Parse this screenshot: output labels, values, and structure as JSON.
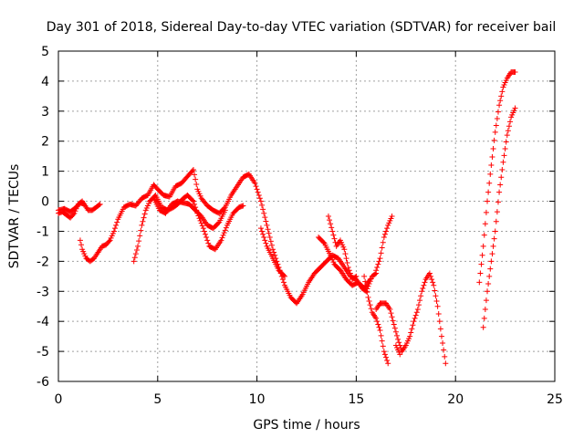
{
  "chart_data": {
    "type": "scatter",
    "title": "Day 301 of 2018, Sidereal Day-to-day VTEC variation (SDTVAR) for receiver bail",
    "xlabel": "GPS time / hours",
    "ylabel": "SDTVAR / TECUs",
    "xlim": [
      0,
      25
    ],
    "ylim": [
      -6,
      5
    ],
    "xticks": [
      "0",
      "5",
      "10",
      "15",
      "20",
      "25"
    ],
    "yticks": [
      "-6",
      "-5",
      "-4",
      "-3",
      "-2",
      "-1",
      "0",
      "1",
      "2",
      "3",
      "4",
      "5"
    ],
    "grid": true,
    "marker": "+",
    "color": "#ff0000",
    "series": [
      {
        "name": "s1",
        "points": [
          [
            0,
            -0.4
          ],
          [
            0.2,
            -0.35
          ],
          [
            0.4,
            -0.45
          ],
          [
            0.6,
            -0.55
          ],
          [
            0.8,
            -0.4
          ],
          [
            1.0,
            -0.1
          ],
          [
            1.2,
            0.0
          ],
          [
            1.35,
            -0.15
          ],
          [
            1.5,
            -0.3
          ],
          [
            1.7,
            -0.3
          ],
          [
            1.9,
            -0.2
          ],
          [
            2.1,
            -0.1
          ]
        ]
      },
      {
        "name": "s2",
        "points": [
          [
            0,
            -0.3
          ],
          [
            0.3,
            -0.25
          ],
          [
            0.6,
            -0.35
          ],
          [
            0.9,
            -0.2
          ],
          [
            1.1,
            -0.05
          ],
          [
            1.3,
            -0.1
          ]
        ]
      },
      {
        "name": "s3",
        "points": [
          [
            1.1,
            -1.3
          ],
          [
            1.2,
            -1.6
          ],
          [
            1.4,
            -1.9
          ],
          [
            1.6,
            -2.0
          ],
          [
            1.8,
            -1.9
          ],
          [
            2.0,
            -1.7
          ],
          [
            2.2,
            -1.5
          ],
          [
            2.4,
            -1.45
          ],
          [
            2.6,
            -1.3
          ],
          [
            2.8,
            -1.0
          ],
          [
            3.0,
            -0.6
          ],
          [
            3.3,
            -0.2
          ],
          [
            3.6,
            -0.1
          ],
          [
            3.9,
            -0.15
          ],
          [
            4.2,
            0.1
          ],
          [
            4.5,
            0.2
          ],
          [
            4.8,
            0.55
          ],
          [
            5.0,
            0.4
          ],
          [
            5.3,
            0.2
          ],
          [
            5.6,
            0.15
          ],
          [
            5.9,
            0.5
          ],
          [
            6.2,
            0.6
          ],
          [
            6.6,
            0.9
          ],
          [
            6.8,
            1.05
          ],
          [
            7.0,
            0.4
          ],
          [
            7.2,
            0.1
          ],
          [
            7.5,
            -0.15
          ],
          [
            7.8,
            -0.3
          ],
          [
            8.1,
            -0.4
          ],
          [
            8.4,
            -0.2
          ],
          [
            8.7,
            0.2
          ],
          [
            9.0,
            0.5
          ],
          [
            9.3,
            0.8
          ],
          [
            9.6,
            0.9
          ],
          [
            9.9,
            0.6
          ],
          [
            10.2,
            0.0
          ],
          [
            10.5,
            -0.8
          ],
          [
            10.8,
            -1.6
          ],
          [
            11.1,
            -2.2
          ],
          [
            11.4,
            -2.8
          ],
          [
            11.7,
            -3.2
          ],
          [
            12.0,
            -3.4
          ],
          [
            12.3,
            -3.1
          ],
          [
            12.6,
            -2.7
          ],
          [
            12.9,
            -2.4
          ],
          [
            13.2,
            -2.2
          ],
          [
            13.5,
            -2.0
          ],
          [
            13.8,
            -1.8
          ],
          [
            14.1,
            -1.9
          ],
          [
            14.4,
            -2.2
          ],
          [
            14.7,
            -2.5
          ],
          [
            15.0,
            -2.6
          ],
          [
            15.3,
            -2.9
          ],
          [
            15.5,
            -3.0
          ],
          [
            15.8,
            -2.5
          ],
          [
            16.0,
            -2.4
          ]
        ]
      },
      {
        "name": "s4",
        "points": [
          [
            3.8,
            -2.0
          ],
          [
            4.0,
            -1.5
          ],
          [
            4.2,
            -0.8
          ],
          [
            4.4,
            -0.3
          ],
          [
            4.6,
            0.0
          ],
          [
            4.9,
            0.2
          ],
          [
            5.2,
            -0.2
          ],
          [
            5.5,
            -0.3
          ],
          [
            5.8,
            -0.2
          ],
          [
            6.0,
            -0.1
          ],
          [
            6.3,
            0.1
          ],
          [
            6.5,
            0.2
          ],
          [
            6.8,
            0.0
          ],
          [
            7.0,
            -0.4
          ],
          [
            7.3,
            -0.9
          ],
          [
            7.6,
            -1.5
          ],
          [
            7.9,
            -1.6
          ],
          [
            8.2,
            -1.3
          ],
          [
            8.5,
            -0.8
          ],
          [
            8.8,
            -0.4
          ],
          [
            9.1,
            -0.2
          ],
          [
            9.3,
            -0.15
          ]
        ]
      },
      {
        "name": "s5",
        "points": [
          [
            4.8,
            0.1
          ],
          [
            5.1,
            -0.3
          ],
          [
            5.4,
            -0.4
          ],
          [
            5.7,
            -0.1
          ],
          [
            6.0,
            0.0
          ],
          [
            6.3,
            -0.05
          ],
          [
            6.6,
            -0.1
          ],
          [
            6.9,
            -0.3
          ],
          [
            7.2,
            -0.5
          ],
          [
            7.5,
            -0.8
          ],
          [
            7.8,
            -0.9
          ],
          [
            8.1,
            -0.7
          ],
          [
            8.4,
            -0.3
          ]
        ]
      },
      {
        "name": "s6",
        "points": [
          [
            10.2,
            -0.9
          ],
          [
            10.5,
            -1.5
          ],
          [
            10.8,
            -1.9
          ],
          [
            11.1,
            -2.3
          ],
          [
            11.4,
            -2.5
          ]
        ]
      },
      {
        "name": "s7",
        "points": [
          [
            13.1,
            -1.2
          ],
          [
            13.4,
            -1.4
          ],
          [
            13.7,
            -1.8
          ],
          [
            13.9,
            -2.1
          ],
          [
            14.2,
            -2.3
          ],
          [
            14.5,
            -2.6
          ],
          [
            14.8,
            -2.8
          ],
          [
            15.1,
            -2.7
          ],
          [
            15.4,
            -2.9
          ],
          [
            15.7,
            -2.6
          ]
        ]
      },
      {
        "name": "s8",
        "points": [
          [
            13.6,
            -0.5
          ],
          [
            13.8,
            -1.0
          ],
          [
            14.0,
            -1.5
          ],
          [
            14.2,
            -1.3
          ],
          [
            14.4,
            -1.6
          ],
          [
            14.6,
            -2.2
          ],
          [
            14.8,
            -2.6
          ],
          [
            15.0,
            -2.5
          ]
        ]
      },
      {
        "name": "s9",
        "points": [
          [
            15.4,
            -2.5
          ],
          [
            15.6,
            -3.2
          ],
          [
            15.8,
            -3.7
          ],
          [
            16.0,
            -3.9
          ],
          [
            16.2,
            -4.3
          ],
          [
            16.4,
            -5.0
          ],
          [
            16.6,
            -5.4
          ]
        ]
      },
      {
        "name": "s10",
        "points": [
          [
            16.0,
            -2.3
          ],
          [
            16.2,
            -1.9
          ],
          [
            16.4,
            -1.2
          ],
          [
            16.6,
            -0.8
          ],
          [
            16.8,
            -0.5
          ]
        ]
      },
      {
        "name": "s11",
        "points": [
          [
            16.0,
            -3.6
          ],
          [
            16.2,
            -3.4
          ],
          [
            16.5,
            -3.4
          ],
          [
            16.7,
            -3.6
          ],
          [
            16.9,
            -4.1
          ],
          [
            17.1,
            -4.6
          ],
          [
            17.3,
            -5.0
          ],
          [
            17.5,
            -4.8
          ],
          [
            17.7,
            -4.5
          ],
          [
            17.9,
            -4.0
          ],
          [
            18.1,
            -3.6
          ],
          [
            18.3,
            -3.0
          ],
          [
            18.5,
            -2.6
          ],
          [
            18.7,
            -2.4
          ],
          [
            18.9,
            -2.8
          ],
          [
            19.1,
            -3.5
          ],
          [
            19.3,
            -4.5
          ],
          [
            19.5,
            -5.4
          ]
        ]
      },
      {
        "name": "s12",
        "points": [
          [
            17.0,
            -4.8
          ],
          [
            17.2,
            -5.1
          ]
        ]
      },
      {
        "name": "s13",
        "points": [
          [
            21.2,
            -2.7
          ],
          [
            21.4,
            -1.5
          ],
          [
            21.6,
            0.0
          ],
          [
            21.8,
            1.2
          ],
          [
            22.0,
            2.3
          ],
          [
            22.2,
            3.2
          ],
          [
            22.4,
            3.8
          ],
          [
            22.6,
            4.1
          ],
          [
            22.8,
            4.3
          ],
          [
            23.0,
            4.3
          ]
        ]
      },
      {
        "name": "s14",
        "points": [
          [
            21.4,
            -4.2
          ],
          [
            21.6,
            -3.0
          ],
          [
            21.8,
            -2.0
          ],
          [
            22.0,
            -1.0
          ],
          [
            22.2,
            0.3
          ],
          [
            22.4,
            1.3
          ],
          [
            22.6,
            2.2
          ],
          [
            22.8,
            2.8
          ],
          [
            23.0,
            3.1
          ]
        ]
      }
    ]
  }
}
